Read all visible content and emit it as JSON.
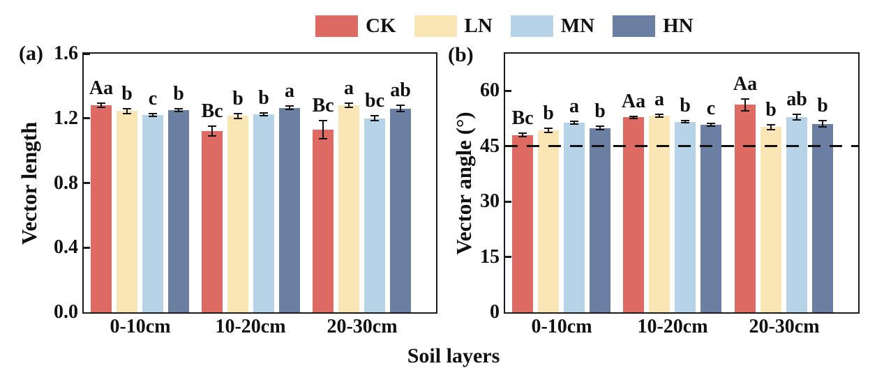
{
  "figure": {
    "xlabel": "Soil layers",
    "legend": [
      {
        "label": "CK",
        "color": "#DE6B63"
      },
      {
        "label": "LN",
        "color": "#FAE6B4"
      },
      {
        "label": "MN",
        "color": "#B7D3E8"
      },
      {
        "label": "HN",
        "color": "#6A7FA2"
      }
    ]
  },
  "chart_data": [
    {
      "type": "bar",
      "panel_label": "(a)",
      "ylabel": "Vector length",
      "ylim": [
        0,
        1.6
      ],
      "ytick_vals": [
        0,
        0.4,
        0.8,
        1.2,
        1.6
      ],
      "ytick_labels": [
        "0.0",
        "0.4",
        "0.8",
        "1.2",
        "1.6"
      ],
      "categories": [
        "0-10cm",
        "10-20cm",
        "20-30cm"
      ],
      "grid": false,
      "ref_line": null,
      "legend_position": "top-center-above-figure",
      "series": [
        {
          "name": "CK",
          "color": "#DE6B63",
          "values": [
            1.28,
            1.12,
            1.13
          ],
          "errors": [
            0.012,
            0.03,
            0.055
          ],
          "sig_labels": [
            "Aa",
            "Bc",
            "Bc"
          ]
        },
        {
          "name": "LN",
          "color": "#FAE6B4",
          "values": [
            1.245,
            1.215,
            1.28
          ],
          "errors": [
            0.015,
            0.015,
            0.012
          ],
          "sig_labels": [
            "b",
            "b",
            "a"
          ]
        },
        {
          "name": "MN",
          "color": "#B7D3E8",
          "values": [
            1.22,
            1.225,
            1.2
          ],
          "errors": [
            0.008,
            0.01,
            0.015
          ],
          "sig_labels": [
            "c",
            "b",
            "bc"
          ]
        },
        {
          "name": "HN",
          "color": "#6A7FA2",
          "values": [
            1.25,
            1.265,
            1.26
          ],
          "errors": [
            0.01,
            0.012,
            0.02
          ],
          "sig_labels": [
            "b",
            "a",
            "ab"
          ]
        }
      ]
    },
    {
      "type": "bar",
      "panel_label": "(b)",
      "ylabel": "Vector angle (°)",
      "ylim": [
        0,
        70
      ],
      "ytick_vals": [
        0,
        15,
        30,
        45,
        60
      ],
      "ytick_labels": [
        "0",
        "15",
        "30",
        "45",
        "60"
      ],
      "categories": [
        "0-10cm",
        "10-20cm",
        "20-30cm"
      ],
      "grid": false,
      "ref_line": 45,
      "series": [
        {
          "name": "CK",
          "color": "#DE6B63",
          "values": [
            48.0,
            52.8,
            56.2
          ],
          "errors": [
            0.4,
            0.3,
            1.6
          ],
          "sig_labels": [
            "Bc",
            "Aa",
            "Aa"
          ]
        },
        {
          "name": "LN",
          "color": "#FAE6B4",
          "values": [
            49.3,
            53.2,
            50.1
          ],
          "errors": [
            0.6,
            0.4,
            0.6
          ],
          "sig_labels": [
            "b",
            "a",
            "b"
          ]
        },
        {
          "name": "MN",
          "color": "#B7D3E8",
          "values": [
            51.3,
            51.6,
            52.8
          ],
          "errors": [
            0.4,
            0.3,
            0.8
          ],
          "sig_labels": [
            "a",
            "b",
            "ab"
          ]
        },
        {
          "name": "HN",
          "color": "#6A7FA2",
          "values": [
            49.9,
            50.7,
            51.0
          ],
          "errors": [
            0.5,
            0.4,
            0.8
          ],
          "sig_labels": [
            "b",
            "c",
            "b"
          ]
        }
      ]
    }
  ]
}
